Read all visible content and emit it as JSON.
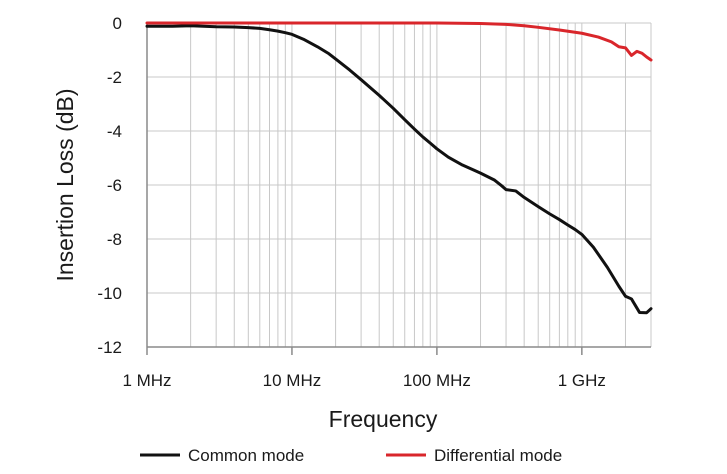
{
  "chart_data": {
    "type": "line",
    "title": "",
    "xlabel": "Frequency",
    "ylabel": "Insertion Loss (dB)",
    "x_scale": "log",
    "x_unit": "Hz",
    "xlim": [
      1000000,
      3000000000
    ],
    "ylim": [
      -12,
      0
    ],
    "grid": true,
    "x_ticks": [
      {
        "value": 1000000,
        "label": "1 MHz"
      },
      {
        "value": 10000000,
        "label": "10 MHz"
      },
      {
        "value": 100000000,
        "label": "100 MHz"
      },
      {
        "value": 1000000000,
        "label": "1 GHz"
      }
    ],
    "y_ticks": [
      {
        "value": 0,
        "label": "0"
      },
      {
        "value": -2,
        "label": "-2"
      },
      {
        "value": -4,
        "label": "-4"
      },
      {
        "value": -6,
        "label": "-6"
      },
      {
        "value": -8,
        "label": "-8"
      },
      {
        "value": -10,
        "label": "-10"
      },
      {
        "value": -12,
        "label": "-12"
      }
    ],
    "legend_position": "bottom",
    "series": [
      {
        "name": "Common mode",
        "color": "#111111",
        "x": [
          1000000,
          1500000,
          2000000,
          3000000,
          4000000,
          5000000,
          6000000,
          7000000,
          8000000,
          9000000,
          10000000,
          12000000,
          15000000,
          18000000,
          20000000,
          25000000,
          30000000,
          40000000,
          50000000,
          60000000,
          70000000,
          80000000,
          90000000,
          100000000,
          120000000,
          150000000,
          180000000,
          200000000,
          250000000,
          280000000,
          300000000,
          350000000,
          400000000,
          500000000,
          600000000,
          700000000,
          800000000,
          900000000,
          1000000000,
          1200000000,
          1500000000,
          1800000000,
          2000000000,
          2200000000,
          2500000000,
          2800000000,
          3000000000
        ],
        "y": [
          -0.12,
          -0.12,
          -0.1,
          -0.14,
          -0.15,
          -0.17,
          -0.2,
          -0.25,
          -0.3,
          -0.36,
          -0.42,
          -0.6,
          -0.88,
          -1.14,
          -1.33,
          -1.74,
          -2.1,
          -2.68,
          -3.16,
          -3.58,
          -3.93,
          -4.22,
          -4.45,
          -4.66,
          -4.97,
          -5.26,
          -5.45,
          -5.56,
          -5.82,
          -6.03,
          -6.17,
          -6.22,
          -6.46,
          -6.8,
          -7.07,
          -7.28,
          -7.48,
          -7.65,
          -7.83,
          -8.3,
          -9.05,
          -9.75,
          -10.12,
          -10.22,
          -10.72,
          -10.73,
          -10.58
        ]
      },
      {
        "name": "Differential mode",
        "color": "#d9262b",
        "x": [
          1000000,
          10000000,
          100000000,
          200000000,
          300000000,
          400000000,
          500000000,
          700000000,
          1000000000,
          1300000000,
          1600000000,
          1800000000,
          2000000000,
          2200000000,
          2400000000,
          2600000000,
          2800000000,
          3000000000
        ],
        "y": [
          0,
          0,
          0,
          -0.02,
          -0.05,
          -0.1,
          -0.16,
          -0.26,
          -0.38,
          -0.52,
          -0.7,
          -0.88,
          -0.92,
          -1.2,
          -1.05,
          -1.12,
          -1.26,
          -1.37
        ]
      }
    ]
  }
}
